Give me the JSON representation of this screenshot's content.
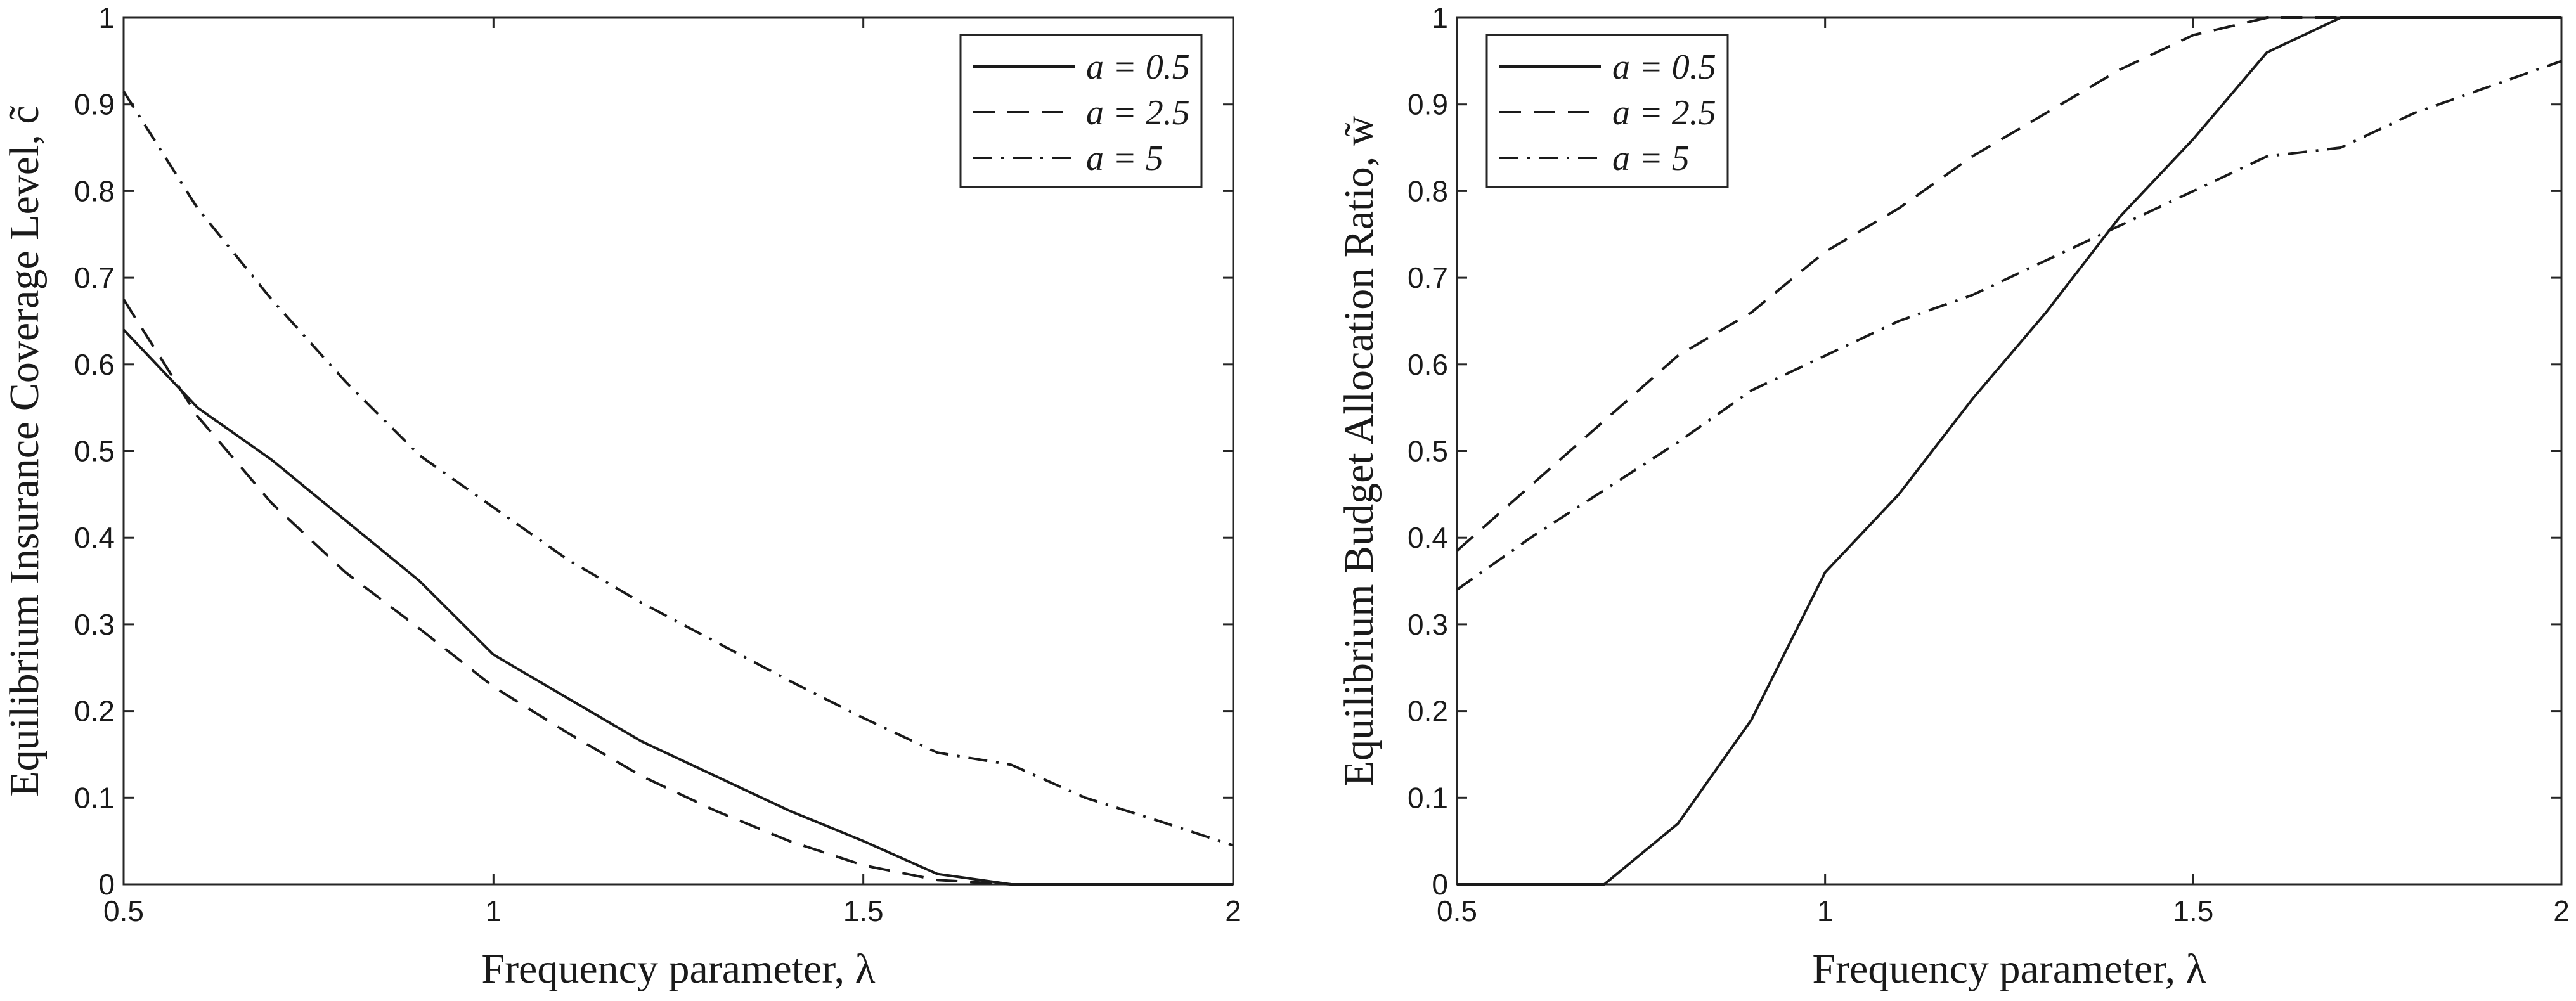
{
  "chart_data": [
    {
      "type": "line",
      "xlabel": "Frequency parameter, λ",
      "ylabel": "Equilibrium Insurance Coverage Level, c̃",
      "xlim": [
        0.5,
        2
      ],
      "ylim": [
        0,
        1
      ],
      "x_ticks": [
        "0.5",
        "1",
        "1.5",
        "2"
      ],
      "y_ticks": [
        "0",
        "0.1",
        "0.2",
        "0.3",
        "0.4",
        "0.5",
        "0.6",
        "0.7",
        "0.8",
        "0.9",
        "1"
      ],
      "legend_position": "top-right",
      "grid": false,
      "series": [
        {
          "name": "a = 0.5",
          "style": "solid",
          "x": [
            0.5,
            0.6,
            0.7,
            0.8,
            0.9,
            1.0,
            1.1,
            1.2,
            1.3,
            1.4,
            1.5,
            1.6,
            1.7,
            1.8,
            1.9,
            2.0
          ],
          "y": [
            0.64,
            0.55,
            0.49,
            0.42,
            0.35,
            0.265,
            0.215,
            0.165,
            0.125,
            0.085,
            0.05,
            0.012,
            0,
            0,
            0,
            0
          ]
        },
        {
          "name": "a = 2.5",
          "style": "dashed",
          "x": [
            0.5,
            0.6,
            0.7,
            0.8,
            0.9,
            1.0,
            1.1,
            1.2,
            1.3,
            1.4,
            1.5,
            1.6,
            1.7,
            1.8,
            1.9,
            2.0
          ],
          "y": [
            0.675,
            0.54,
            0.44,
            0.36,
            0.295,
            0.228,
            0.175,
            0.125,
            0.085,
            0.05,
            0.022,
            0.005,
            0,
            0,
            0,
            0
          ]
        },
        {
          "name": "a = 5",
          "style": "dashdot",
          "x": [
            0.5,
            0.6,
            0.7,
            0.8,
            0.9,
            1.0,
            1.1,
            1.2,
            1.3,
            1.4,
            1.5,
            1.6,
            1.7,
            1.8,
            1.9,
            2.0
          ],
          "y": [
            0.915,
            0.78,
            0.675,
            0.58,
            0.495,
            0.435,
            0.375,
            0.325,
            0.28,
            0.235,
            0.192,
            0.152,
            0.138,
            0.1,
            0.073,
            0.045
          ]
        }
      ]
    },
    {
      "type": "line",
      "xlabel": "Frequency parameter, λ",
      "ylabel": "Equilibrium Budget Allocation Ratio, w̃",
      "xlim": [
        0.5,
        2
      ],
      "ylim": [
        0,
        1
      ],
      "x_ticks": [
        "0.5",
        "1",
        "1.5",
        "2"
      ],
      "y_ticks": [
        "0",
        "0.1",
        "0.2",
        "0.3",
        "0.4",
        "0.5",
        "0.6",
        "0.7",
        "0.8",
        "0.9",
        "1"
      ],
      "legend_position": "top-left",
      "grid": false,
      "series": [
        {
          "name": "a = 0.5",
          "style": "solid",
          "x": [
            0.5,
            0.6,
            0.7,
            0.8,
            0.9,
            1.0,
            1.1,
            1.2,
            1.3,
            1.4,
            1.5,
            1.6,
            1.7,
            1.8,
            1.9,
            2.0
          ],
          "y": [
            0,
            0,
            0,
            0.07,
            0.19,
            0.36,
            0.45,
            0.56,
            0.66,
            0.77,
            0.86,
            0.96,
            1,
            1,
            1,
            1
          ]
        },
        {
          "name": "a = 2.5",
          "style": "dashed",
          "x": [
            0.5,
            0.6,
            0.7,
            0.8,
            0.9,
            1.0,
            1.1,
            1.2,
            1.3,
            1.4,
            1.5,
            1.6,
            1.7,
            1.8,
            1.9,
            2.0
          ],
          "y": [
            0.385,
            0.46,
            0.535,
            0.61,
            0.66,
            0.73,
            0.78,
            0.84,
            0.89,
            0.94,
            0.98,
            1,
            1,
            1,
            1,
            1
          ]
        },
        {
          "name": "a = 5",
          "style": "dashdot",
          "x": [
            0.5,
            0.6,
            0.7,
            0.8,
            0.9,
            1.0,
            1.1,
            1.2,
            1.3,
            1.4,
            1.5,
            1.6,
            1.7,
            1.8,
            1.9,
            2.0
          ],
          "y": [
            0.34,
            0.4,
            0.455,
            0.51,
            0.57,
            0.61,
            0.65,
            0.68,
            0.72,
            0.76,
            0.8,
            0.84,
            0.85,
            0.89,
            0.92,
            0.95
          ]
        }
      ]
    }
  ]
}
